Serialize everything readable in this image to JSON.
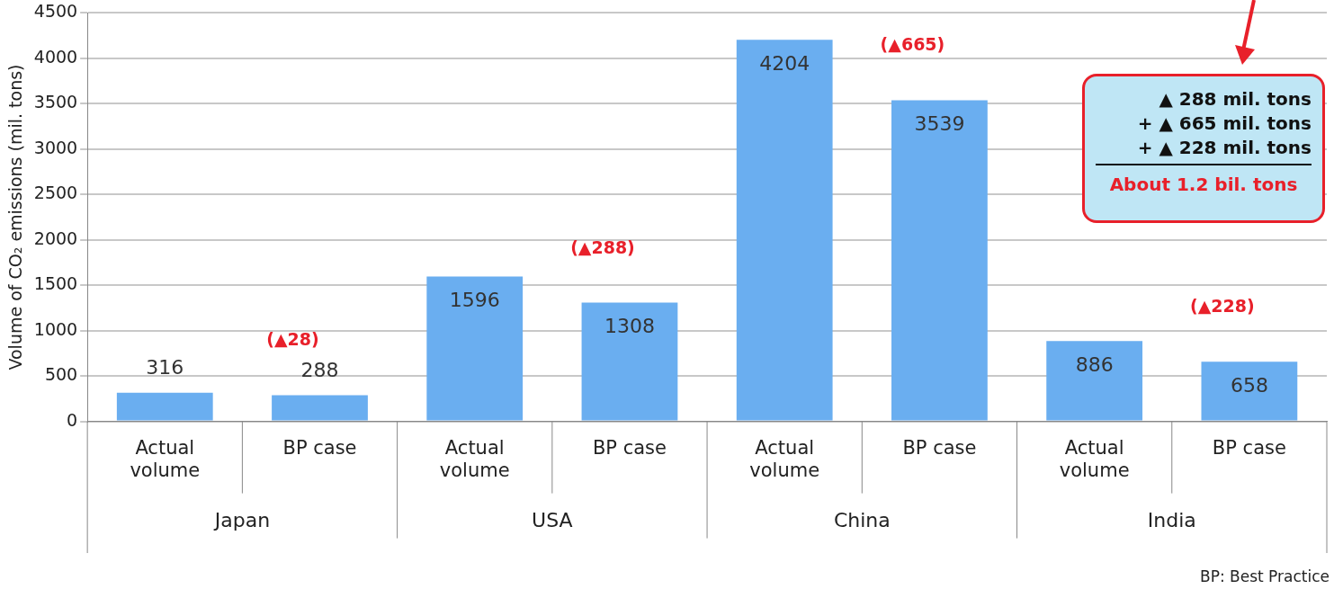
{
  "chart_data": {
    "type": "bar",
    "ylabel": "Volume of CO₂ emissions (mil. tons)",
    "categories": [
      "Actual volume",
      "BP case",
      "Actual volume",
      "BP case",
      "Actual volume",
      "BP case",
      "Actual volume",
      "BP case"
    ],
    "values": [
      316,
      288,
      1596,
      1308,
      4204,
      3539,
      886,
      658
    ],
    "color": "#6aaef0",
    "data_labels": true,
    "ylim": [
      0,
      4500
    ],
    "yticks": [
      0,
      500,
      1000,
      1500,
      2000,
      2500,
      3000,
      3500,
      4000,
      4500
    ],
    "grid": "y",
    "legend": false,
    "annotations": [
      "Japan",
      "USA",
      "China",
      "India",
      "(▲28)",
      "(▲288)",
      "(▲665)",
      "(▲228)",
      "▲ 288 mil. tons",
      "+ ▲ 665 mil. tons",
      "+ ▲ 228 mil. tons",
      "About 1.2 bil. tons",
      "BP: Best Practice"
    ]
  }
}
